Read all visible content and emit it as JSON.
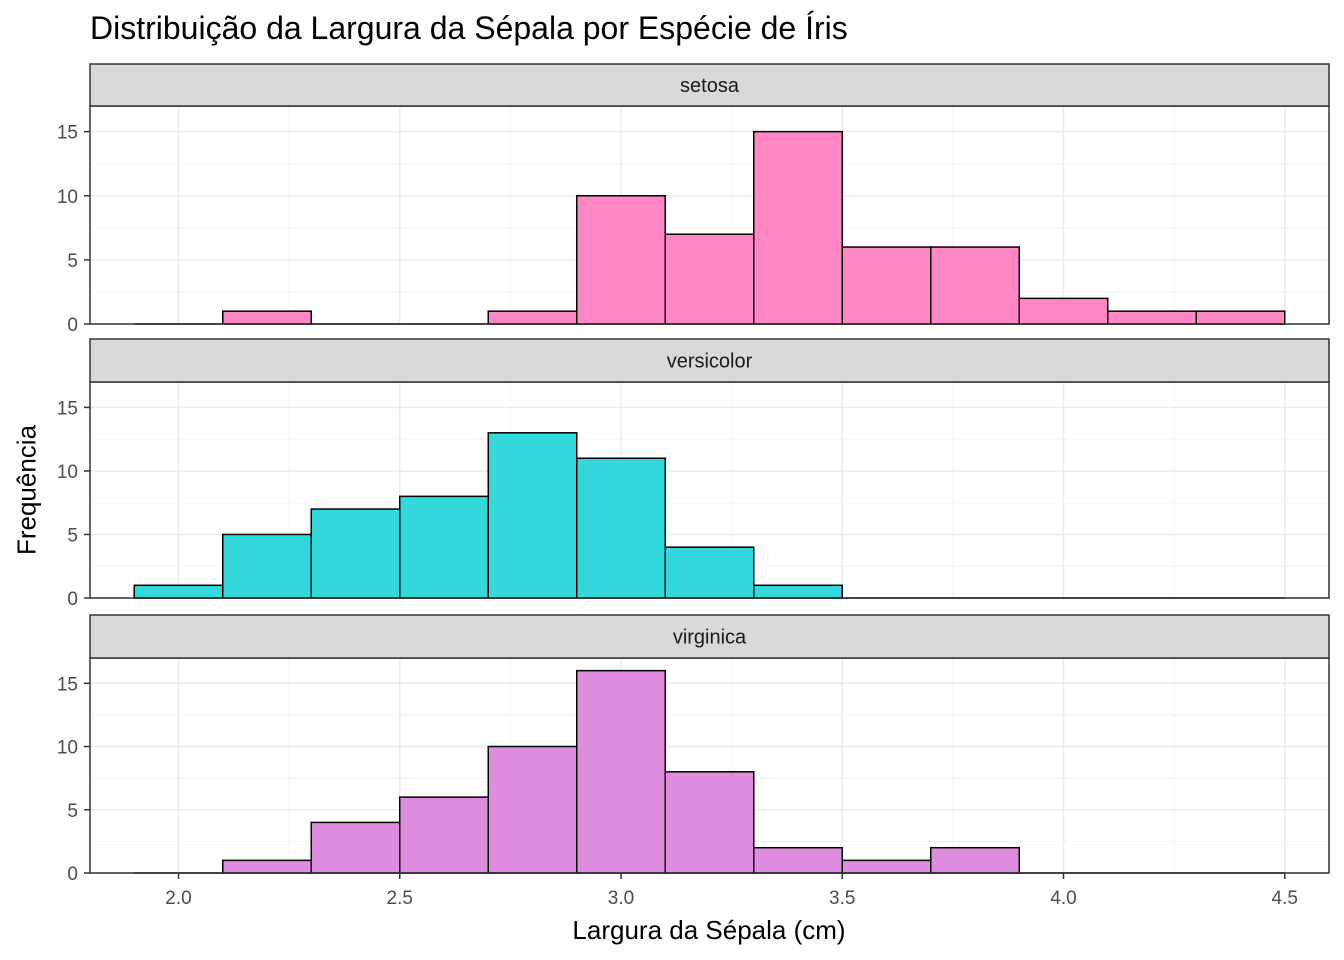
{
  "chart_data": {
    "type": "bar",
    "title": "Distribuição da Largura da Sépala por Espécie de Íris",
    "xlabel": "Largura da Sépala (cm)",
    "ylabel": "Frequência",
    "xlim": [
      1.8,
      4.6
    ],
    "ylim": [
      0,
      17
    ],
    "x_ticks": [
      "2.0",
      "2.5",
      "3.0",
      "3.5",
      "4.0",
      "4.5"
    ],
    "y_ticks": [
      "0",
      "5",
      "10",
      "15"
    ],
    "grid": true,
    "bin_edges": [
      1.9,
      2.1,
      2.3,
      2.5,
      2.7,
      2.9,
      3.1,
      3.3,
      3.5,
      3.7,
      3.9,
      4.1,
      4.3,
      4.5
    ],
    "series": [
      {
        "name": "setosa",
        "color": "#FF88C4",
        "values": [
          0,
          1,
          0,
          0,
          1,
          10,
          7,
          15,
          6,
          6,
          2,
          1,
          1
        ]
      },
      {
        "name": "versicolor",
        "color": "#33D8DA",
        "values": [
          1,
          5,
          7,
          8,
          13,
          11,
          4,
          1,
          0,
          0,
          0,
          0,
          0
        ]
      },
      {
        "name": "virginica",
        "color": "#DE8CDD",
        "values": [
          0,
          1,
          4,
          6,
          10,
          16,
          8,
          2,
          1,
          2,
          0,
          0,
          0
        ]
      }
    ]
  }
}
